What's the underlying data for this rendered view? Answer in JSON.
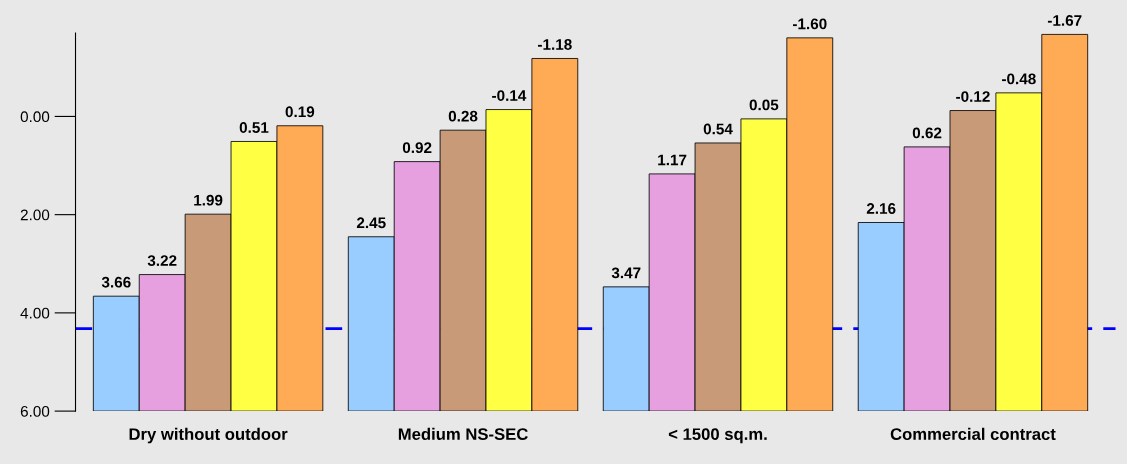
{
  "chart_data": {
    "type": "bar",
    "categories": [
      "Dry without outdoor",
      "Medium NS-SEC",
      "< 1500 sq.m.",
      "Commercial contract"
    ],
    "series": [
      {
        "color": "#99ccff",
        "base": [
          6,
          6,
          6,
          6
        ],
        "values": [
          -2.34,
          -3.55,
          -2.53,
          -3.84
        ],
        "value_labels": [
          "3.66",
          "2.45",
          "3.47",
          "2.16"
        ]
      },
      {
        "color": "#e6a0e0",
        "base": [
          6,
          6,
          6,
          6
        ],
        "values": [
          -2.78,
          -5.08,
          -4.83,
          -5.38
        ],
        "value_labels": [
          "3.22",
          "0.92",
          "1.17",
          "0.62"
        ]
      },
      {
        "color": "#c89a78",
        "base": [
          6,
          6,
          6,
          6
        ],
        "values": [
          -4.01,
          -5.72,
          -5.46,
          -6.12
        ],
        "value_labels": [
          "1.99",
          "0.28",
          "0.54",
          "-0.12"
        ]
      },
      {
        "color": "#ffff44",
        "base": [
          6,
          6,
          6,
          6
        ],
        "values": [
          -5.49,
          -6.14,
          -5.95,
          -6.48
        ],
        "value_labels": [
          "0.51",
          "-0.14",
          "0.05",
          "-0.48"
        ]
      },
      {
        "color": "#ffaa55",
        "base": [
          6,
          6,
          6,
          6
        ],
        "values": [
          -5.81,
          -7.18,
          -7.6,
          -7.67
        ],
        "value_labels": [
          "0.19",
          "-1.18",
          "-1.60",
          "-1.67"
        ]
      }
    ],
    "ylim": [
      6.0,
      -1.7
    ],
    "yticks": [
      {
        "value": 0,
        "label": "0.00"
      },
      {
        "value": 2,
        "label": "2.00"
      },
      {
        "value": 4,
        "label": "4.00"
      },
      {
        "value": 6,
        "label": "6.00"
      }
    ],
    "ref_lines": [
      {
        "axis": "y",
        "value": 4.32,
        "color": "#0000ff",
        "line_style": "dashed"
      }
    ],
    "grid": false,
    "legend": false
  }
}
